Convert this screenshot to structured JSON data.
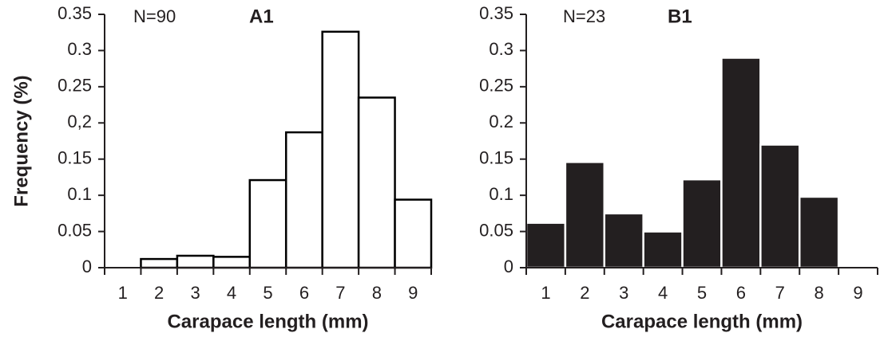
{
  "chart_data": [
    {
      "type": "bar",
      "annotations": [
        "N=90",
        "A1"
      ],
      "y_label": "Frequency (%)",
      "x_label": "Carapace length (mm)",
      "categories": [
        "1",
        "2",
        "3",
        "4",
        "5",
        "6",
        "7",
        "8",
        "9"
      ],
      "values": [
        0,
        0.012,
        0.0165,
        0.015,
        0.121,
        0.187,
        0.326,
        0.235,
        0.094
      ],
      "color": "#ffffff",
      "edge_color": "#000000",
      "ylim": [
        0,
        0.35
      ],
      "yticks": [
        0,
        0.05,
        0.1,
        0.15,
        {
          "value": 0.2,
          "label": "0,2"
        },
        0.25,
        0.3,
        0.35
      ],
      "grid": false
    },
    {
      "type": "bar",
      "annotations": [
        "N=23",
        "B1"
      ],
      "x_label": "Carapace length (mm)",
      "categories": [
        "1",
        "2",
        "3",
        "4",
        "5",
        "6",
        "7",
        "8",
        "9"
      ],
      "values": [
        0.062,
        0.146,
        0.075,
        0.05,
        0.122,
        0.29,
        0.17,
        0.098,
        0
      ],
      "color": "#231f20",
      "edge_color": "#ffffff",
      "ylim": [
        0,
        0.35
      ],
      "yticks": [
        0,
        0.05,
        0.1,
        0.15,
        0.2,
        0.25,
        0.3,
        0.35
      ],
      "grid": false
    }
  ]
}
